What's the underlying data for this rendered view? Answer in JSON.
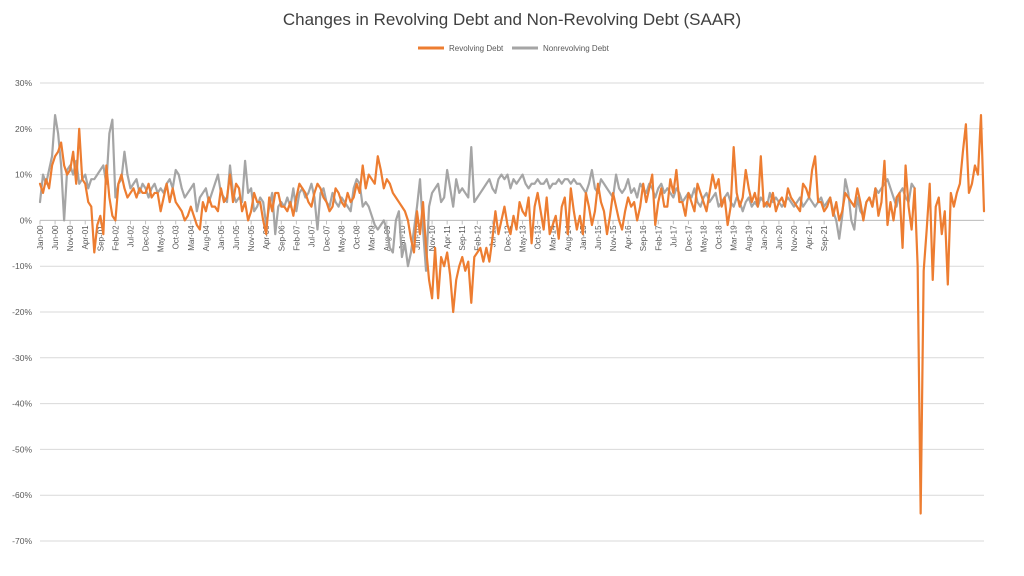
{
  "chart_data": {
    "type": "line",
    "title": "Changes in Revolving Debt and Non-Revolving Debt (SAAR)",
    "xlabel": "",
    "ylabel": "",
    "ylim": [
      -70,
      30
    ],
    "y_ticks": [
      "30%",
      "20%",
      "10%",
      "0%",
      "-10%",
      "-20%",
      "-30%",
      "-40%",
      "-50%",
      "-60%",
      "-70%"
    ],
    "y_tick_values": [
      30,
      20,
      10,
      0,
      -10,
      -20,
      -30,
      -40,
      -50,
      -60,
      -70
    ],
    "x_start": "Jan-00",
    "x_tick_labels": [
      "Jan-00",
      "Jun-00",
      "Nov-00",
      "Apr-01",
      "Sep-01",
      "Feb-02",
      "Jul-02",
      "Dec-02",
      "May-03",
      "Oct-03",
      "Mar-04",
      "Aug-04",
      "Jan-05",
      "Jun-05",
      "Nov-05",
      "Apr-06",
      "Sep-06",
      "Feb-07",
      "Jul-07",
      "Dec-07",
      "May-08",
      "Oct-08",
      "Mar-09",
      "Aug-09",
      "Jan-10",
      "Jun-10",
      "Nov-10",
      "Apr-11",
      "Sep-11",
      "Feb-12",
      "Jul-12",
      "Dec-12",
      "May-13",
      "Oct-13",
      "Mar-14",
      "Aug-14",
      "Jan-15",
      "Jun-15",
      "Nov-15",
      "Apr-16",
      "Sep-16",
      "Feb-17",
      "Jul-17",
      "Dec-17",
      "May-18",
      "Oct-18",
      "Mar-19",
      "Aug-19",
      "Jan-20",
      "Jun-20",
      "Nov-20",
      "Apr-21",
      "Sep-21"
    ],
    "grid": true,
    "legend": "top-center",
    "series": [
      {
        "name": "Revolving Debt",
        "color": "#ED7D31",
        "values": [
          8,
          6,
          9,
          7,
          12,
          14,
          15,
          17,
          12,
          10,
          11,
          15,
          8,
          20,
          9,
          8,
          4,
          3,
          -7,
          -1,
          1,
          -3,
          12,
          5,
          1,
          0,
          8,
          10,
          7,
          5,
          6,
          7,
          5,
          7,
          6,
          6,
          8,
          5,
          6,
          6,
          2,
          5,
          8,
          4,
          7,
          4,
          3,
          2,
          0,
          1,
          3,
          1,
          -1,
          -2,
          4,
          2,
          5,
          3,
          3,
          2,
          7,
          4,
          5,
          10,
          4,
          8,
          7,
          2,
          4,
          0,
          2,
          6,
          4,
          4,
          0,
          -3,
          5,
          2,
          6,
          6,
          3,
          3,
          2,
          4,
          1,
          5,
          8,
          7,
          6,
          4,
          3,
          6,
          8,
          7,
          5,
          4,
          2,
          3,
          7,
          6,
          4,
          3,
          6,
          4,
          5,
          8,
          6,
          12,
          7,
          10,
          9,
          8,
          14,
          11,
          7,
          9,
          8,
          6,
          5,
          4,
          3,
          2,
          0,
          -4,
          -7,
          2,
          -3,
          4,
          -6,
          -13,
          -17,
          -6,
          -17,
          -8,
          -10,
          -7,
          -12,
          -20,
          -13,
          -10,
          -8,
          -11,
          -9,
          -18,
          -8,
          -7,
          -6,
          -9,
          -6,
          -9,
          -4,
          2,
          -3,
          0,
          3,
          -1,
          -3,
          1,
          -2,
          4,
          2,
          1,
          5,
          -5,
          3,
          6,
          2,
          -2,
          5,
          -3,
          -1,
          1,
          -4,
          3,
          5,
          -3,
          7,
          2,
          -2,
          1,
          -3,
          6,
          3,
          -1,
          2,
          8,
          4,
          2,
          -3,
          1,
          6,
          3,
          0,
          -2,
          2,
          5,
          3,
          4,
          0,
          3,
          8,
          4,
          7,
          10,
          -1,
          4,
          7,
          3,
          3,
          9,
          6,
          11,
          4,
          4,
          1,
          6,
          4,
          2,
          8,
          6,
          4,
          2,
          6,
          10,
          7,
          9,
          3,
          5,
          -1,
          3,
          16,
          6,
          3,
          5,
          11,
          7,
          4,
          6,
          3,
          14,
          3,
          4,
          3,
          6,
          2,
          4,
          5,
          3,
          7,
          5,
          4,
          3,
          2,
          8,
          7,
          5,
          11,
          14,
          4,
          4,
          2,
          3,
          5,
          1,
          4,
          0,
          2,
          6,
          5,
          4,
          3,
          7,
          4,
          0,
          4,
          5,
          3,
          7,
          1,
          4,
          13,
          -1,
          4,
          0,
          5,
          6,
          -6,
          12,
          3,
          -2,
          7,
          -10,
          -64,
          -11,
          -2,
          8,
          -13,
          3,
          5,
          -3,
          2,
          -14,
          6,
          3,
          6,
          8,
          15,
          21,
          6,
          8,
          12,
          10,
          23,
          2
        ]
      },
      {
        "name": "Nonrevolving Debt",
        "color": "#A5A5A5",
        "values": [
          4,
          10,
          8,
          11,
          14,
          23,
          19,
          12,
          0,
          11,
          12,
          10,
          13,
          8,
          9,
          10,
          7,
          9,
          9,
          10,
          11,
          12,
          8,
          19,
          22,
          5,
          8,
          9,
          15,
          10,
          7,
          8,
          9,
          6,
          8,
          7,
          5,
          7,
          8,
          6,
          7,
          6,
          8,
          9,
          7,
          11,
          10,
          7,
          5,
          6,
          7,
          8,
          2,
          5,
          6,
          7,
          4,
          6,
          8,
          10,
          6,
          5,
          4,
          12,
          6,
          4,
          5,
          4,
          13,
          6,
          7,
          2,
          3,
          5,
          4,
          -1,
          3,
          6,
          -3,
          3,
          4,
          3,
          5,
          3,
          7,
          2,
          6,
          7,
          5,
          6,
          8,
          5,
          -2,
          6,
          7,
          4,
          3,
          6,
          4,
          3,
          5,
          4,
          3,
          2,
          7,
          9,
          8,
          3,
          4,
          3,
          1,
          -1,
          -2,
          -1,
          0,
          -2,
          -6,
          -7,
          0,
          2,
          -8,
          -5,
          -10,
          -7,
          -2,
          3,
          9,
          -2,
          -11,
          3,
          6,
          7,
          8,
          4,
          5,
          11,
          7,
          3,
          9,
          6,
          7,
          6,
          5,
          16,
          4,
          5,
          6,
          7,
          8,
          9,
          7,
          6,
          9,
          10,
          9,
          10,
          7,
          9,
          8,
          9,
          10,
          8,
          7,
          8,
          8,
          9,
          8,
          8,
          9,
          7,
          8,
          8,
          9,
          8,
          9,
          9,
          8,
          9,
          8,
          8,
          7,
          6,
          8,
          11,
          7,
          6,
          9,
          8,
          7,
          6,
          5,
          10,
          7,
          6,
          7,
          9,
          6,
          7,
          5,
          8,
          7,
          6,
          8,
          7,
          5,
          7,
          8,
          6,
          7,
          6,
          5,
          7,
          6,
          4,
          5,
          6,
          5,
          7,
          4,
          3,
          5,
          6,
          4,
          5,
          6,
          3,
          4,
          5,
          6,
          4,
          3,
          5,
          4,
          2,
          4,
          5,
          3,
          4,
          3,
          5,
          4,
          3,
          6,
          4,
          5,
          4,
          3,
          4,
          5,
          4,
          3,
          4,
          5,
          3,
          4,
          5,
          4,
          3,
          4,
          5,
          3,
          4,
          5,
          2,
          0,
          -4,
          1,
          9,
          6,
          0,
          -2,
          5,
          2,
          1,
          4,
          5,
          3,
          7,
          6,
          7,
          8,
          9,
          7,
          5,
          3,
          6,
          7,
          5,
          4,
          8,
          7
        ]
      }
    ]
  }
}
